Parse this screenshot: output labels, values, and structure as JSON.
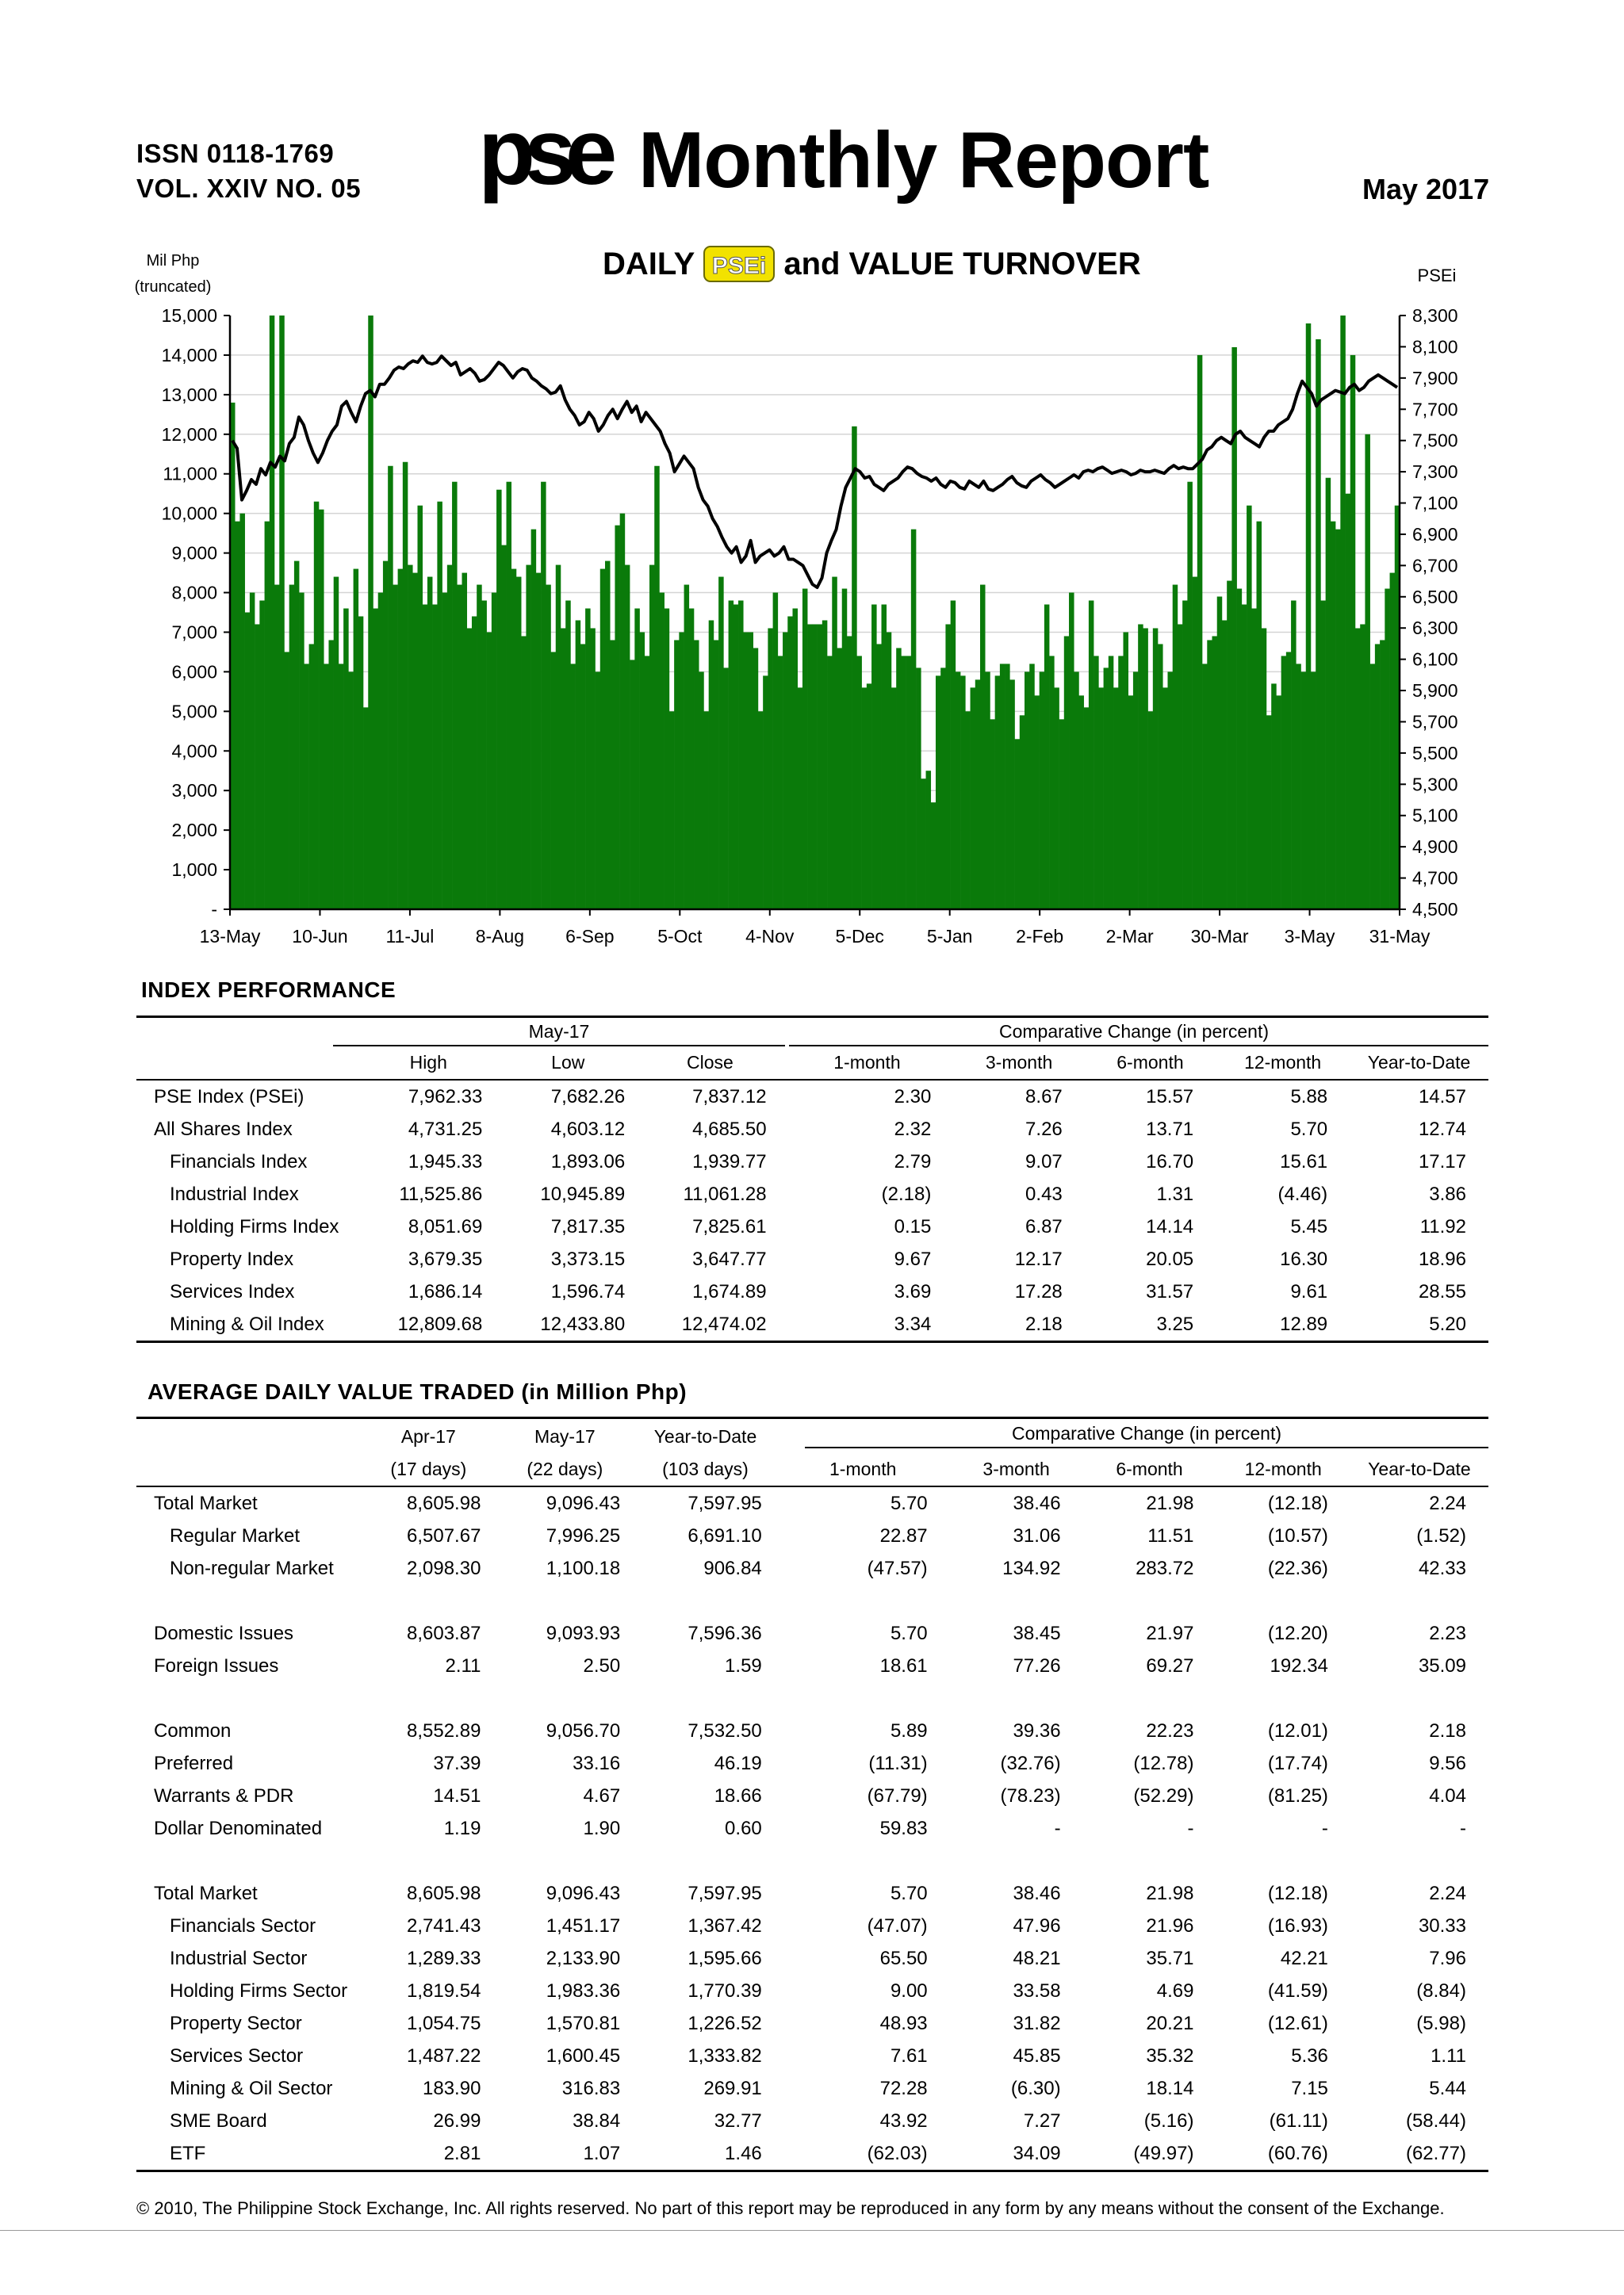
{
  "header": {
    "issn": "ISSN 0118-1769",
    "volume": "VOL. XXIV NO. 05",
    "logo_text": "pse",
    "title": "Monthly Report",
    "date": "May 2017"
  },
  "chart_data": {
    "type": "bar+line",
    "title_prefix": "DAILY",
    "title_badge": "PSEi",
    "title_suffix": "and  VALUE TURNOVER",
    "left_axis_label_1": "Mil Php",
    "left_axis_label_2": "(truncated)",
    "right_axis_label": "PSEi",
    "left_ticks": [
      "15,000",
      "14,000",
      "13,000",
      "12,000",
      "11,000",
      "10,000",
      "9,000",
      "8,000",
      "7,000",
      "6,000",
      "5,000",
      "4,000",
      "3,000",
      "2,000",
      "1,000",
      "-"
    ],
    "right_ticks": [
      "8,300",
      "8,100",
      "7,900",
      "7,700",
      "7,500",
      "7,300",
      "7,100",
      "6,900",
      "6,700",
      "6,500",
      "6,300",
      "6,100",
      "5,900",
      "5,700",
      "5,500",
      "5,300",
      "5,100",
      "4,900",
      "4,700",
      "4,500"
    ],
    "x_ticks": [
      "13-May",
      "10-Jun",
      "11-Jul",
      "8-Aug",
      "6-Sep",
      "5-Oct",
      "4-Nov",
      "5-Dec",
      "5-Jan",
      "2-Feb",
      "2-Mar",
      "30-Mar",
      "3-May",
      "31-May"
    ],
    "left_range": [
      0,
      15000
    ],
    "right_range": [
      4500,
      8300
    ],
    "bar_color": "#0a7a0a",
    "line_color": "#000000",
    "value_turnover_mil_php": [
      12800,
      9800,
      10000,
      7500,
      8000,
      7200,
      7800,
      9800,
      15000,
      8200,
      15000,
      6500,
      8200,
      8800,
      8000,
      6200,
      6700,
      10300,
      10100,
      6200,
      6800,
      8400,
      6200,
      7600,
      6000,
      8600,
      7400,
      5100,
      15000,
      7600,
      8000,
      8800,
      11200,
      8200,
      8600,
      11300,
      8700,
      8500,
      10200,
      7700,
      8400,
      7700,
      10300,
      8000,
      8700,
      10800,
      8200,
      8500,
      7100,
      7400,
      8200,
      7800,
      7000,
      8000,
      10600,
      9200,
      10800,
      8600,
      8400,
      6900,
      8700,
      9600,
      8500,
      10800,
      8200,
      6500,
      8700,
      7100,
      7800,
      6200,
      7300,
      6700,
      7600,
      7100,
      6000,
      8600,
      8800,
      6800,
      9700,
      10000,
      8700,
      6300,
      7600,
      7000,
      6400,
      8700,
      11200,
      8000,
      7600,
      5000,
      6800,
      7000,
      8200,
      7600,
      6800,
      6000,
      5000,
      7300,
      6800,
      8400,
      6100,
      7800,
      7700,
      7800,
      7000,
      7000,
      6600,
      5000,
      5900,
      7100,
      8000,
      6400,
      7000,
      7400,
      7600,
      5600,
      8100,
      7200,
      7200,
      7200,
      7300,
      6400,
      8400,
      6600,
      8100,
      6900,
      12200,
      6400,
      5600,
      5700,
      7700,
      6700,
      7700,
      7000,
      5600,
      6600,
      6400,
      6400,
      9600,
      6100,
      3300,
      3500,
      2700,
      5900,
      6100,
      7200,
      7800,
      6000,
      5900,
      5000,
      5600,
      5800,
      8200,
      6000,
      4800,
      5900,
      6200,
      6200,
      5800,
      4300,
      4900,
      6000,
      6200,
      5400,
      6000,
      7700,
      6400,
      5600,
      4800,
      6900,
      8000,
      6000,
      5400,
      5100,
      7800,
      6400,
      5600,
      6100,
      6400,
      5600,
      6400,
      7000,
      5400,
      6000,
      7200,
      7100,
      5000,
      7100,
      6700,
      5600,
      6000,
      8200,
      7200,
      7800,
      10800,
      8400,
      14000,
      6200,
      6800,
      6900,
      7900,
      7300,
      8300,
      14200,
      8100,
      7700,
      10200,
      7600,
      9800,
      7100,
      4900,
      5700,
      5400,
      6400,
      6500,
      7800,
      6200,
      6000,
      14800,
      6000,
      14400,
      7800,
      10900,
      9800,
      9600,
      15000,
      10500,
      14000,
      7100,
      7200,
      12000,
      6200,
      6700,
      6800,
      8100,
      8500,
      10200
    ],
    "psei_index": [
      7500,
      7450,
      7120,
      7180,
      7250,
      7220,
      7320,
      7280,
      7360,
      7330,
      7400,
      7370,
      7480,
      7520,
      7650,
      7600,
      7500,
      7420,
      7360,
      7420,
      7500,
      7560,
      7600,
      7720,
      7750,
      7680,
      7620,
      7720,
      7800,
      7820,
      7780,
      7860,
      7860,
      7900,
      7950,
      7970,
      7960,
      7990,
      8010,
      8000,
      8040,
      8000,
      7990,
      8000,
      8040,
      8010,
      7980,
      8000,
      7920,
      7940,
      7960,
      7930,
      7880,
      7890,
      7920,
      7960,
      8000,
      7980,
      7940,
      7900,
      7940,
      7960,
      7950,
      7900,
      7880,
      7850,
      7830,
      7800,
      7810,
      7850,
      7760,
      7700,
      7660,
      7600,
      7620,
      7680,
      7640,
      7560,
      7600,
      7660,
      7700,
      7640,
      7700,
      7750,
      7680,
      7720,
      7620,
      7680,
      7640,
      7600,
      7560,
      7480,
      7420,
      7300,
      7350,
      7400,
      7360,
      7320,
      7200,
      7120,
      7080,
      7000,
      6950,
      6880,
      6820,
      6780,
      6820,
      6720,
      6760,
      6860,
      6720,
      6760,
      6780,
      6800,
      6760,
      6780,
      6820,
      6740,
      6740,
      6720,
      6700,
      6640,
      6580,
      6560,
      6620,
      6780,
      6860,
      6930,
      7080,
      7200,
      7260,
      7320,
      7300,
      7260,
      7270,
      7220,
      7200,
      7180,
      7220,
      7240,
      7260,
      7300,
      7330,
      7320,
      7290,
      7270,
      7260,
      7240,
      7260,
      7220,
      7200,
      7240,
      7230,
      7200,
      7190,
      7240,
      7220,
      7200,
      7240,
      7190,
      7180,
      7200,
      7220,
      7250,
      7270,
      7230,
      7210,
      7200,
      7240,
      7260,
      7280,
      7250,
      7230,
      7200,
      7220,
      7240,
      7260,
      7280,
      7260,
      7300,
      7310,
      7300,
      7320,
      7330,
      7310,
      7290,
      7300,
      7310,
      7300,
      7280,
      7290,
      7310,
      7300,
      7300,
      7310,
      7300,
      7290,
      7320,
      7340,
      7320,
      7330,
      7320,
      7320,
      7350,
      7380,
      7440,
      7460,
      7500,
      7520,
      7500,
      7480,
      7540,
      7560,
      7520,
      7500,
      7480,
      7460,
      7520,
      7560,
      7560,
      7600,
      7620,
      7640,
      7700,
      7800,
      7880,
      7840,
      7800,
      7720,
      7760,
      7780,
      7800,
      7820,
      7810,
      7800,
      7840,
      7860,
      7820,
      7840,
      7880,
      7900,
      7920,
      7900,
      7880,
      7860,
      7840
    ]
  },
  "index_performance": {
    "title": "INDEX PERFORMANCE",
    "group_left": "May-17",
    "group_right": "Comparative Change (in percent)",
    "columns": [
      "High",
      "Low",
      "Close",
      "1-month",
      "3-month",
      "6-month",
      "12-month",
      "Year-to-Date"
    ],
    "rows": [
      {
        "name": "PSE Index (PSEi)",
        "indent": 0,
        "vals": [
          "7,962.33",
          "7,682.26",
          "7,837.12",
          "2.30",
          "8.67",
          "15.57",
          "5.88",
          "14.57"
        ]
      },
      {
        "name": "All Shares Index",
        "indent": 0,
        "vals": [
          "4,731.25",
          "4,603.12",
          "4,685.50",
          "2.32",
          "7.26",
          "13.71",
          "5.70",
          "12.74"
        ]
      },
      {
        "name": "Financials Index",
        "indent": 1,
        "vals": [
          "1,945.33",
          "1,893.06",
          "1,939.77",
          "2.79",
          "9.07",
          "16.70",
          "15.61",
          "17.17"
        ]
      },
      {
        "name": "Industrial Index",
        "indent": 1,
        "vals": [
          "11,525.86",
          "10,945.89",
          "11,061.28",
          "(2.18)",
          "0.43",
          "1.31",
          "(4.46)",
          "3.86"
        ]
      },
      {
        "name": "Holding Firms Index",
        "indent": 1,
        "vals": [
          "8,051.69",
          "7,817.35",
          "7,825.61",
          "0.15",
          "6.87",
          "14.14",
          "5.45",
          "11.92"
        ]
      },
      {
        "name": "Property Index",
        "indent": 1,
        "vals": [
          "3,679.35",
          "3,373.15",
          "3,647.77",
          "9.67",
          "12.17",
          "20.05",
          "16.30",
          "18.96"
        ]
      },
      {
        "name": "Services Index",
        "indent": 1,
        "vals": [
          "1,686.14",
          "1,596.74",
          "1,674.89",
          "3.69",
          "17.28",
          "31.57",
          "9.61",
          "28.55"
        ]
      },
      {
        "name": "Mining & Oil Index",
        "indent": 1,
        "vals": [
          "12,809.68",
          "12,433.80",
          "12,474.02",
          "3.34",
          "2.18",
          "3.25",
          "12.89",
          "5.20"
        ]
      }
    ]
  },
  "avg_daily_value": {
    "title": "AVERAGE DAILY VALUE TRADED (in Million Php)",
    "group_right": "Comparative Change (in percent)",
    "columns_top": [
      "Apr-17",
      "May-17",
      "Year-to-Date"
    ],
    "columns": [
      "(17 days)",
      "(22 days)",
      "(103 days)",
      "1-month",
      "3-month",
      "6-month",
      "12-month",
      "Year-to-Date"
    ],
    "rows": [
      {
        "name": "Total Market",
        "indent": 0,
        "vals": [
          "8,605.98",
          "9,096.43",
          "7,597.95",
          "5.70",
          "38.46",
          "21.98",
          "(12.18)",
          "2.24"
        ]
      },
      {
        "name": "Regular Market",
        "indent": 1,
        "vals": [
          "6,507.67",
          "7,996.25",
          "6,691.10",
          "22.87",
          "31.06",
          "11.51",
          "(10.57)",
          "(1.52)"
        ]
      },
      {
        "name": "Non-regular Market",
        "indent": 1,
        "vals": [
          "2,098.30",
          "1,100.18",
          "906.84",
          "(47.57)",
          "134.92",
          "283.72",
          "(22.36)",
          "42.33"
        ]
      },
      {
        "name": "",
        "indent": 0,
        "vals": [
          "",
          "",
          "",
          "",
          "",
          "",
          "",
          ""
        ]
      },
      {
        "name": "Domestic Issues",
        "indent": 0,
        "vals": [
          "8,603.87",
          "9,093.93",
          "7,596.36",
          "5.70",
          "38.45",
          "21.97",
          "(12.20)",
          "2.23"
        ]
      },
      {
        "name": "Foreign Issues",
        "indent": 0,
        "vals": [
          "2.11",
          "2.50",
          "1.59",
          "18.61",
          "77.26",
          "69.27",
          "192.34",
          "35.09"
        ]
      },
      {
        "name": "",
        "indent": 0,
        "vals": [
          "",
          "",
          "",
          "",
          "",
          "",
          "",
          ""
        ]
      },
      {
        "name": "Common",
        "indent": 0,
        "vals": [
          "8,552.89",
          "9,056.70",
          "7,532.50",
          "5.89",
          "39.36",
          "22.23",
          "(12.01)",
          "2.18"
        ]
      },
      {
        "name": "Preferred",
        "indent": 0,
        "vals": [
          "37.39",
          "33.16",
          "46.19",
          "(11.31)",
          "(32.76)",
          "(12.78)",
          "(17.74)",
          "9.56"
        ]
      },
      {
        "name": "Warrants & PDR",
        "indent": 0,
        "vals": [
          "14.51",
          "4.67",
          "18.66",
          "(67.79)",
          "(78.23)",
          "(52.29)",
          "(81.25)",
          "4.04"
        ]
      },
      {
        "name": "Dollar Denominated",
        "indent": 0,
        "vals": [
          "1.19",
          "1.90",
          "0.60",
          "59.83",
          "-",
          "-",
          "-",
          "-"
        ]
      },
      {
        "name": "",
        "indent": 0,
        "vals": [
          "",
          "",
          "",
          "",
          "",
          "",
          "",
          ""
        ]
      },
      {
        "name": "Total Market",
        "indent": 0,
        "vals": [
          "8,605.98",
          "9,096.43",
          "7,597.95",
          "5.70",
          "38.46",
          "21.98",
          "(12.18)",
          "2.24"
        ]
      },
      {
        "name": "Financials Sector",
        "indent": 1,
        "vals": [
          "2,741.43",
          "1,451.17",
          "1,367.42",
          "(47.07)",
          "47.96",
          "21.96",
          "(16.93)",
          "30.33"
        ]
      },
      {
        "name": "Industrial Sector",
        "indent": 1,
        "vals": [
          "1,289.33",
          "2,133.90",
          "1,595.66",
          "65.50",
          "48.21",
          "35.71",
          "42.21",
          "7.96"
        ]
      },
      {
        "name": "Holding Firms Sector",
        "indent": 1,
        "vals": [
          "1,819.54",
          "1,983.36",
          "1,770.39",
          "9.00",
          "33.58",
          "4.69",
          "(41.59)",
          "(8.84)"
        ]
      },
      {
        "name": "Property Sector",
        "indent": 1,
        "vals": [
          "1,054.75",
          "1,570.81",
          "1,226.52",
          "48.93",
          "31.82",
          "20.21",
          "(12.61)",
          "(5.98)"
        ]
      },
      {
        "name": "Services Sector",
        "indent": 1,
        "vals": [
          "1,487.22",
          "1,600.45",
          "1,333.82",
          "7.61",
          "45.85",
          "35.32",
          "5.36",
          "1.11"
        ]
      },
      {
        "name": "Mining & Oil Sector",
        "indent": 1,
        "vals": [
          "183.90",
          "316.83",
          "269.91",
          "72.28",
          "(6.30)",
          "18.14",
          "7.15",
          "5.44"
        ]
      },
      {
        "name": "SME Board",
        "indent": 1,
        "vals": [
          "26.99",
          "38.84",
          "32.77",
          "43.92",
          "7.27",
          "(5.16)",
          "(61.11)",
          "(58.44)"
        ]
      },
      {
        "name": "ETF",
        "indent": 1,
        "vals": [
          "2.81",
          "1.07",
          "1.46",
          "(62.03)",
          "34.09",
          "(49.97)",
          "(60.76)",
          "(62.77)"
        ]
      }
    ]
  },
  "footer": "© 2010, The Philippine Stock Exchange, Inc. All rights reserved. No part of this report may be reproduced in any form by any means without the consent of the Exchange."
}
